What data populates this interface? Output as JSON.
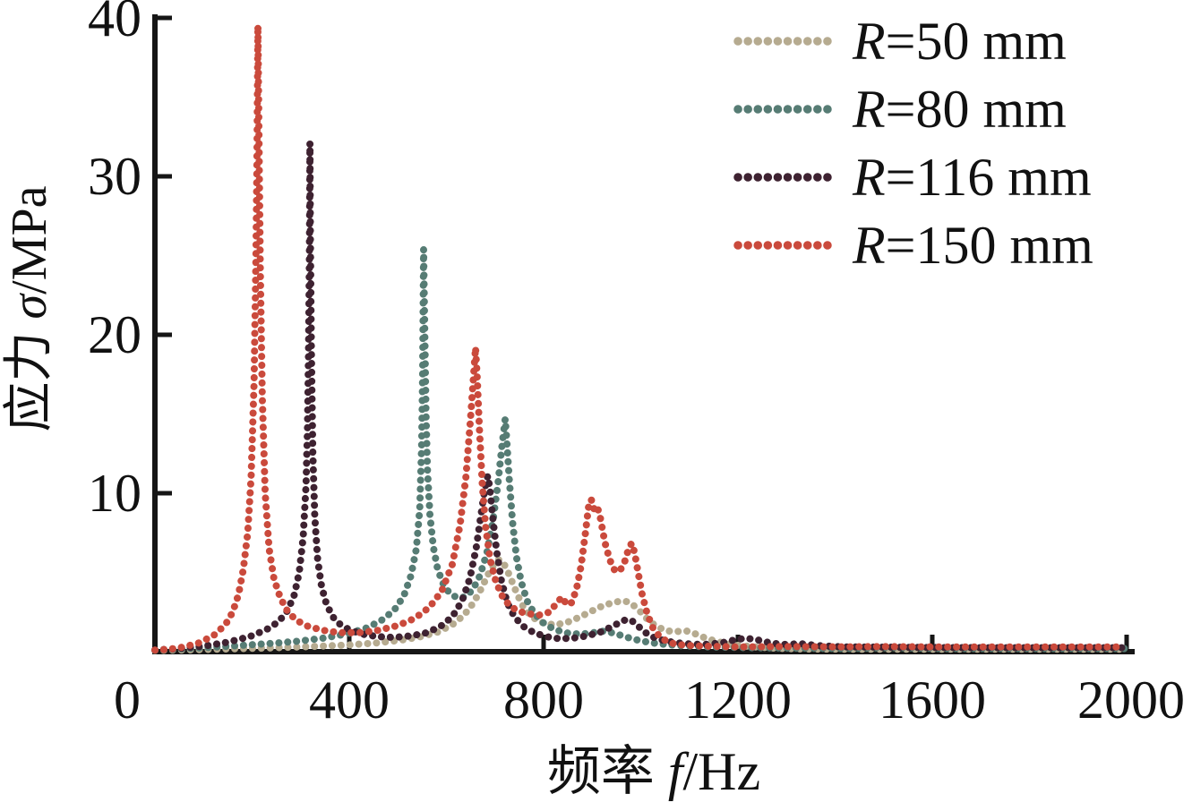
{
  "background_color": "#ffffff",
  "chart_data": {
    "type": "line",
    "title": "",
    "xlabel_prefix": "频率 ",
    "xlabel_symbol": "f",
    "xlabel_suffix": "/Hz",
    "ylabel_prefix": "应力 ",
    "ylabel_symbol": "σ",
    "ylabel_suffix": "/MPa",
    "xlim": [
      0,
      2000
    ],
    "ylim": [
      0,
      40
    ],
    "xticks": [
      0,
      400,
      800,
      1200,
      1600,
      2000
    ],
    "yticks": [
      10,
      20,
      30,
      40
    ],
    "grid": false,
    "axis_color": "#161616",
    "legend_position": "top-right",
    "marker_style": "dotted",
    "series": [
      {
        "symbol": "R",
        "rest": "=50 mm",
        "label": "R=50 mm",
        "color": "#b6ab90",
        "peaks": [
          [
            712,
            5.8
          ],
          [
            965,
            3.2
          ],
          [
            1090,
            1.3
          ]
        ],
        "points": [
          [
            0,
            0.08
          ],
          [
            80,
            0.12
          ],
          [
            160,
            0.18
          ],
          [
            240,
            0.24
          ],
          [
            320,
            0.32
          ],
          [
            395,
            0.42
          ],
          [
            455,
            0.55
          ],
          [
            505,
            0.72
          ],
          [
            548,
            0.95
          ],
          [
            583,
            1.25
          ],
          [
            612,
            1.7
          ],
          [
            636,
            2.3
          ],
          [
            656,
            3.1
          ],
          [
            672,
            4.0
          ],
          [
            686,
            4.9
          ],
          [
            698,
            5.5
          ],
          [
            707,
            5.8
          ],
          [
            714,
            5.75
          ],
          [
            723,
            5.3
          ],
          [
            734,
            4.5
          ],
          [
            746,
            3.6
          ],
          [
            758,
            2.85
          ],
          [
            772,
            2.3
          ],
          [
            788,
            1.95
          ],
          [
            806,
            1.75
          ],
          [
            826,
            1.7
          ],
          [
            848,
            1.85
          ],
          [
            872,
            2.15
          ],
          [
            898,
            2.55
          ],
          [
            922,
            2.9
          ],
          [
            943,
            3.1
          ],
          [
            960,
            3.2
          ],
          [
            973,
            3.15
          ],
          [
            986,
            2.9
          ],
          [
            1000,
            2.5
          ],
          [
            1015,
            2.0
          ],
          [
            1032,
            1.6
          ],
          [
            1050,
            1.35
          ],
          [
            1068,
            1.25
          ],
          [
            1083,
            1.3
          ],
          [
            1095,
            1.3
          ],
          [
            1110,
            1.15
          ],
          [
            1130,
            0.9
          ],
          [
            1155,
            0.65
          ],
          [
            1185,
            0.45
          ],
          [
            1225,
            0.32
          ],
          [
            1275,
            0.22
          ],
          [
            1340,
            0.17
          ],
          [
            1440,
            0.15
          ],
          [
            1560,
            0.15
          ],
          [
            1700,
            0.15
          ],
          [
            1850,
            0.15
          ],
          [
            1995,
            0.15
          ]
        ]
      },
      {
        "symbol": "R",
        "rest": "=80 mm",
        "label": "R=80 mm",
        "color": "#567c74",
        "peaks": [
          [
            553,
            25.4
          ],
          [
            721,
            14.7
          ]
        ],
        "points": [
          [
            0,
            0.1
          ],
          [
            60,
            0.18
          ],
          [
            120,
            0.28
          ],
          [
            180,
            0.4
          ],
          [
            240,
            0.52
          ],
          [
            295,
            0.66
          ],
          [
            345,
            0.85
          ],
          [
            392,
            1.1
          ],
          [
            432,
            1.45
          ],
          [
            465,
            1.95
          ],
          [
            492,
            2.6
          ],
          [
            512,
            3.5
          ],
          [
            527,
            4.8
          ],
          [
            538,
            6.5
          ],
          [
            545,
            9.0
          ],
          [
            549,
            13.0
          ],
          [
            551,
            17.5
          ],
          [
            553,
            25.4
          ],
          [
            555,
            21.0
          ],
          [
            558,
            15.0
          ],
          [
            561,
            11.5
          ],
          [
            566,
            8.6
          ],
          [
            573,
            6.6
          ],
          [
            582,
            5.2
          ],
          [
            593,
            4.3
          ],
          [
            606,
            3.7
          ],
          [
            622,
            3.4
          ],
          [
            638,
            3.45
          ],
          [
            654,
            3.9
          ],
          [
            669,
            4.8
          ],
          [
            683,
            6.2
          ],
          [
            696,
            8.3
          ],
          [
            706,
            10.6
          ],
          [
            714,
            12.9
          ],
          [
            719,
            14.2
          ],
          [
            721,
            14.7
          ],
          [
            724,
            13.4
          ],
          [
            729,
            11.0
          ],
          [
            736,
            8.2
          ],
          [
            744,
            6.0
          ],
          [
            754,
            4.4
          ],
          [
            766,
            3.2
          ],
          [
            781,
            2.4
          ],
          [
            800,
            1.8
          ],
          [
            822,
            1.4
          ],
          [
            848,
            1.18
          ],
          [
            876,
            1.1
          ],
          [
            902,
            1.2
          ],
          [
            925,
            1.3
          ],
          [
            947,
            1.15
          ],
          [
            970,
            0.92
          ],
          [
            1000,
            0.68
          ],
          [
            1035,
            0.5
          ],
          [
            1080,
            0.38
          ],
          [
            1140,
            0.3
          ],
          [
            1220,
            0.25
          ],
          [
            1320,
            0.22
          ],
          [
            1420,
            0.2
          ],
          [
            1520,
            0.25
          ],
          [
            1620,
            0.2
          ],
          [
            1720,
            0.2
          ],
          [
            1820,
            0.2
          ],
          [
            1920,
            0.2
          ],
          [
            1995,
            0.2
          ]
        ]
      },
      {
        "symbol": "R",
        "rest": "=116 mm",
        "label": "R=116 mm",
        "color": "#3e2231",
        "peaks": [
          [
            319,
            32.1
          ],
          [
            686,
            11.1
          ],
          [
            972,
            2.1
          ],
          [
            1215,
            0.85
          ]
        ],
        "points": [
          [
            0,
            0.1
          ],
          [
            50,
            0.2
          ],
          [
            100,
            0.35
          ],
          [
            150,
            0.6
          ],
          [
            195,
            0.95
          ],
          [
            230,
            1.4
          ],
          [
            255,
            1.9
          ],
          [
            273,
            2.6
          ],
          [
            287,
            3.6
          ],
          [
            297,
            5.0
          ],
          [
            305,
            7.2
          ],
          [
            311,
            10.5
          ],
          [
            314,
            14.0
          ],
          [
            316,
            18.5
          ],
          [
            318,
            25.0
          ],
          [
            319,
            32.1
          ],
          [
            320,
            26.0
          ],
          [
            322,
            19.0
          ],
          [
            325,
            12.5
          ],
          [
            329,
            8.5
          ],
          [
            335,
            5.8
          ],
          [
            343,
            4.1
          ],
          [
            353,
            3.0
          ],
          [
            366,
            2.2
          ],
          [
            382,
            1.7
          ],
          [
            402,
            1.35
          ],
          [
            428,
            1.1
          ],
          [
            458,
            0.95
          ],
          [
            492,
            0.9
          ],
          [
            528,
            1.0
          ],
          [
            560,
            1.2
          ],
          [
            588,
            1.6
          ],
          [
            612,
            2.2
          ],
          [
            632,
            3.2
          ],
          [
            648,
            4.6
          ],
          [
            661,
            6.5
          ],
          [
            671,
            8.6
          ],
          [
            679,
            10.3
          ],
          [
            685,
            11.1
          ],
          [
            689,
            10.4
          ],
          [
            695,
            8.6
          ],
          [
            703,
            6.4
          ],
          [
            713,
            4.5
          ],
          [
            725,
            3.1
          ],
          [
            740,
            2.2
          ],
          [
            758,
            1.6
          ],
          [
            780,
            1.2
          ],
          [
            805,
            0.95
          ],
          [
            832,
            0.82
          ],
          [
            860,
            0.85
          ],
          [
            890,
            1.0
          ],
          [
            918,
            1.25
          ],
          [
            942,
            1.6
          ],
          [
            960,
            1.9
          ],
          [
            972,
            2.05
          ],
          [
            982,
            1.95
          ],
          [
            995,
            1.6
          ],
          [
            1010,
            1.2
          ],
          [
            1030,
            0.85
          ],
          [
            1055,
            0.65
          ],
          [
            1090,
            0.5
          ],
          [
            1130,
            0.45
          ],
          [
            1165,
            0.55
          ],
          [
            1195,
            0.75
          ],
          [
            1215,
            0.85
          ],
          [
            1235,
            0.78
          ],
          [
            1260,
            0.6
          ],
          [
            1290,
            0.45
          ],
          [
            1330,
            0.5
          ],
          [
            1365,
            0.38
          ],
          [
            1420,
            0.3
          ],
          [
            1500,
            0.28
          ],
          [
            1600,
            0.26
          ],
          [
            1700,
            0.25
          ],
          [
            1800,
            0.25
          ],
          [
            1900,
            0.25
          ],
          [
            1995,
            0.25
          ]
        ]
      },
      {
        "symbol": "R",
        "rest": "=150 mm",
        "label": "R=150 mm",
        "color": "#ca4a3c",
        "peaks": [
          [
            212,
            39.5
          ],
          [
            660,
            19.2
          ],
          [
            897,
            9.6
          ],
          [
            981,
            6.9
          ]
        ],
        "points": [
          [
            0,
            0.1
          ],
          [
            30,
            0.15
          ],
          [
            60,
            0.3
          ],
          [
            90,
            0.55
          ],
          [
            120,
            1.0
          ],
          [
            145,
            1.7
          ],
          [
            160,
            2.5
          ],
          [
            172,
            3.6
          ],
          [
            182,
            5.2
          ],
          [
            191,
            7.5
          ],
          [
            198,
            11.0
          ],
          [
            204,
            17.0
          ],
          [
            208,
            25.0
          ],
          [
            210,
            31.0
          ],
          [
            212,
            39.5
          ],
          [
            214,
            33.0
          ],
          [
            217,
            24.0
          ],
          [
            221,
            16.0
          ],
          [
            227,
            10.0
          ],
          [
            235,
            6.5
          ],
          [
            245,
            4.6
          ],
          [
            258,
            3.4
          ],
          [
            272,
            2.6
          ],
          [
            290,
            2.0
          ],
          [
            315,
            1.6
          ],
          [
            345,
            1.35
          ],
          [
            380,
            1.2
          ],
          [
            420,
            1.2
          ],
          [
            460,
            1.35
          ],
          [
            500,
            1.65
          ],
          [
            535,
            2.1
          ],
          [
            565,
            2.8
          ],
          [
            590,
            3.8
          ],
          [
            612,
            5.5
          ],
          [
            628,
            8.0
          ],
          [
            640,
            11.0
          ],
          [
            649,
            14.5
          ],
          [
            656,
            17.5
          ],
          [
            660,
            19.2
          ],
          [
            663,
            17.5
          ],
          [
            668,
            14.0
          ],
          [
            674,
            10.5
          ],
          [
            681,
            7.8
          ],
          [
            690,
            5.8
          ],
          [
            702,
            4.4
          ],
          [
            715,
            3.5
          ],
          [
            730,
            2.9
          ],
          [
            748,
            2.55
          ],
          [
            768,
            2.4
          ],
          [
            790,
            2.3
          ],
          [
            812,
            2.5
          ],
          [
            828,
            3.1
          ],
          [
            838,
            3.45
          ],
          [
            848,
            2.95
          ],
          [
            858,
            3.1
          ],
          [
            868,
            4.0
          ],
          [
            877,
            5.4
          ],
          [
            886,
            7.5
          ],
          [
            893,
            9.3
          ],
          [
            898,
            9.6
          ],
          [
            904,
            9.0
          ],
          [
            910,
            9.2
          ],
          [
            917,
            8.4
          ],
          [
            926,
            6.9
          ],
          [
            936,
            5.8
          ],
          [
            946,
            5.15
          ],
          [
            956,
            5.05
          ],
          [
            966,
            5.6
          ],
          [
            974,
            6.4
          ],
          [
            981,
            6.85
          ],
          [
            987,
            6.3
          ],
          [
            994,
            5.1
          ],
          [
            1003,
            3.6
          ],
          [
            1013,
            2.4
          ],
          [
            1025,
            1.5
          ],
          [
            1040,
            0.9
          ],
          [
            1060,
            0.55
          ],
          [
            1090,
            0.4
          ],
          [
            1130,
            0.35
          ],
          [
            1200,
            0.3
          ],
          [
            1300,
            0.32
          ],
          [
            1400,
            0.3
          ],
          [
            1500,
            0.32
          ],
          [
            1600,
            0.3
          ],
          [
            1700,
            0.3
          ],
          [
            1800,
            0.3
          ],
          [
            1900,
            0.3
          ],
          [
            1995,
            0.3
          ]
        ]
      }
    ]
  }
}
